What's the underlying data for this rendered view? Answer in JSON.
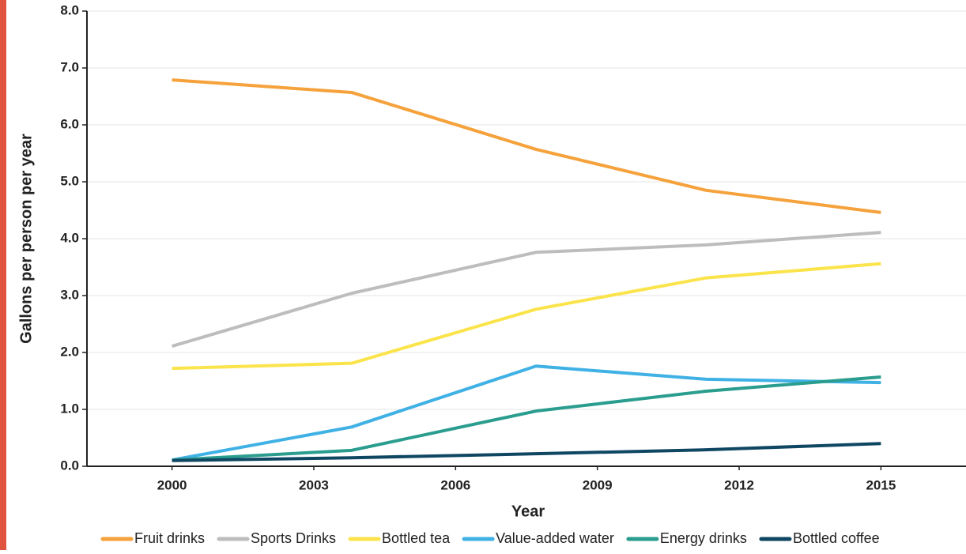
{
  "chart_data": {
    "type": "line",
    "x_label": "Year",
    "y_label": "Gallons per person per year",
    "x": [
      2000,
      2003.8,
      2007.7,
      2011.3,
      2015
    ],
    "xlim": [
      1998.2,
      2016.8
    ],
    "xticks": [
      2000,
      2003,
      2006,
      2009,
      2012,
      2015
    ],
    "ylim": [
      0,
      8
    ],
    "yticks": [
      {
        "value": 0,
        "label": "0.0"
      },
      {
        "value": 1,
        "label": "1.0"
      },
      {
        "value": 2,
        "label": "2.0"
      },
      {
        "value": 3,
        "label": "3.0"
      },
      {
        "value": 4,
        "label": "4.0"
      },
      {
        "value": 5,
        "label": "5.0"
      },
      {
        "value": 6,
        "label": "6.0"
      },
      {
        "value": 7,
        "label": "7.0"
      },
      {
        "value": 8,
        "label": "8.0"
      }
    ],
    "grid": true,
    "series": [
      {
        "name": "Fruit drinks",
        "color": "#f5a23c",
        "values": [
          6.79,
          6.57,
          5.57,
          4.85,
          4.46
        ]
      },
      {
        "name": "Sports Drinks",
        "color": "#bdbdbd",
        "values": [
          2.11,
          3.04,
          3.76,
          3.89,
          4.11
        ]
      },
      {
        "name": "Bottled tea",
        "color": "#fbe44b",
        "values": [
          1.72,
          1.81,
          2.76,
          3.31,
          3.56
        ]
      },
      {
        "name": "Value-added water",
        "color": "#3fb1e5",
        "values": [
          0.11,
          0.69,
          1.76,
          1.53,
          1.47
        ]
      },
      {
        "name": "Energy drinks",
        "color": "#2a9d8f",
        "values": [
          0.11,
          0.28,
          0.97,
          1.32,
          1.57
        ]
      },
      {
        "name": "Bottled coffee",
        "color": "#0f4763",
        "values": [
          0.1,
          0.15,
          0.22,
          0.29,
          0.4
        ]
      }
    ]
  }
}
